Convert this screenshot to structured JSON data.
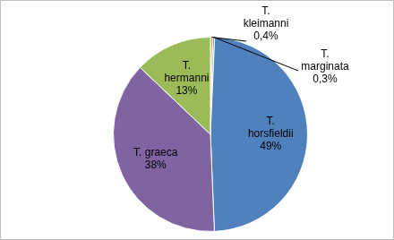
{
  "chart_data": {
    "type": "pie",
    "categories": [
      "T. kleimanni",
      "T. marginata",
      "T. horsfieldii",
      "T. graeca",
      "T. hermanni"
    ],
    "values": [
      0.4,
      0.3,
      49,
      38,
      13
    ],
    "value_labels": [
      "0,4%",
      "0,3%",
      "49%",
      "38%",
      "13%"
    ],
    "colors": [
      "#f79646",
      "#4bacc6",
      "#4f81bd",
      "#8064a2",
      "#9bbb59"
    ],
    "data_labels": true
  }
}
